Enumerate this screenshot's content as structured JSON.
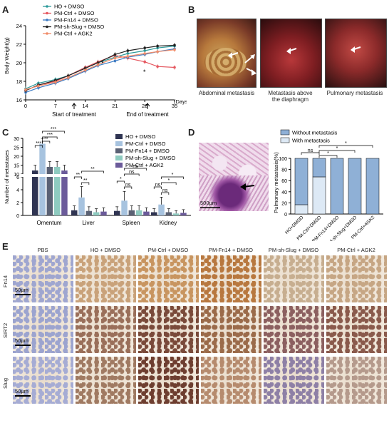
{
  "panels": {
    "a": "A",
    "b": "B",
    "c": "C",
    "d": "D",
    "e": "E"
  },
  "colors": {
    "ho": "#2e9b9b",
    "pmctrl": "#e5575f",
    "pmfn14": "#3b7bc4",
    "pmshslug": "#222222",
    "agk2": "#f08c6a",
    "c_ho": "#2f3452",
    "c_pmctrl": "#a7c3df",
    "c_fn14": "#5a6174",
    "c_slug": "#8ecbc0",
    "c_agk2": "#6b5b9a"
  },
  "panel_a": {
    "ylabel": "Body Weight(g)",
    "xlabel_unit": "(Days)",
    "start_label": "Start of treatment",
    "end_label": "End of treatment",
    "star1": "*",
    "star2": "*"
  },
  "panel_b": {
    "captions": [
      "Abdominal metastasis",
      "Metastasis above\nthe diaphragm",
      "Pulmonary metastasis"
    ]
  },
  "panel_c": {
    "ylabel": "Number of metastases",
    "groups": [
      "Omentum",
      "Liver",
      "Spleen",
      "Kidney"
    ],
    "sig": {
      "omentum": [
        "***",
        "***",
        "***",
        "**"
      ],
      "liver": [
        "**",
        "**",
        "**"
      ],
      "spleen": [
        "*",
        "ns",
        "ns",
        "ns"
      ],
      "kidney": [
        "ns",
        "ns",
        "*",
        "*"
      ]
    }
  },
  "panel_d": {
    "ylabel": "Pulmonary metastasis(%)",
    "scale": "500μm",
    "legend": [
      "Without metastasis",
      "With metastasis"
    ],
    "sig": [
      "ns",
      "*",
      "*",
      "*"
    ]
  },
  "panel_e": {
    "headers": [
      "PBS",
      "HO + DMSO",
      "PM-Ctrl + DMSO",
      "PM-Fn14 + DMSO",
      "PM-sh-Slug + DMSO",
      "PM-Ctrl + AGK2"
    ],
    "rows": [
      "Fn14",
      "SIRT2",
      "Slug"
    ],
    "scale": "50μm"
  },
  "chart_data": [
    {
      "type": "line",
      "x": [
        0,
        3,
        7,
        10,
        14,
        17,
        21,
        24,
        28,
        31,
        35
      ],
      "xticks": [
        0,
        7,
        14,
        21,
        28,
        35
      ],
      "ylim": [
        16,
        24
      ],
      "yticks": [
        16,
        18,
        20,
        22,
        24
      ],
      "xlabel": "(Days)",
      "ylabel": "Body Weight(g)",
      "legend": "top-left",
      "series": [
        {
          "name": "HO + DMSO",
          "values": [
            17.2,
            17.8,
            18.2,
            18.6,
            19.5,
            20.0,
            20.6,
            21.0,
            21.3,
            21.6,
            21.8
          ]
        },
        {
          "name": "PM-Ctrl + DMSO",
          "values": [
            17.0,
            17.6,
            18.0,
            18.6,
            19.5,
            20.1,
            20.8,
            20.5,
            20.1,
            19.6,
            19.5
          ]
        },
        {
          "name": "PM-Fn14 + DMSO",
          "values": [
            16.8,
            17.3,
            17.8,
            18.3,
            19.1,
            19.7,
            20.2,
            20.6,
            20.9,
            21.2,
            21.5
          ]
        },
        {
          "name": "PM-sh-Slug + DMSO",
          "values": [
            17.0,
            17.6,
            18.1,
            18.6,
            19.4,
            20.0,
            20.9,
            21.3,
            21.6,
            21.8,
            21.9
          ]
        },
        {
          "name": "PM-Ctrl + AGK2",
          "values": [
            17.1,
            17.5,
            17.9,
            18.4,
            19.2,
            19.8,
            20.5,
            20.7,
            21.0,
            21.2,
            21.4
          ]
        }
      ]
    },
    {
      "type": "bar",
      "categories": [
        "Omentum",
        "Liver",
        "Spleen",
        "Kidney"
      ],
      "ylabel": "Number of metastases",
      "legend": "top-right",
      "yticks": [
        0,
        2,
        4,
        6,
        10,
        15,
        20,
        25,
        30
      ],
      "series": [
        {
          "name": "HO + DMSO",
          "values": [
            12,
            0.8,
            0.7,
            0.5
          ]
        },
        {
          "name": "PM-Ctrl + DMSO",
          "values": [
            27,
            2.8,
            2.3,
            1.7
          ]
        },
        {
          "name": "PM-Fn14 + DMSO",
          "values": [
            14,
            0.7,
            0.8,
            0.5
          ]
        },
        {
          "name": "PM-sh-Slug + DMSO",
          "values": [
            14,
            0.5,
            0.8,
            0.3
          ]
        },
        {
          "name": "PM-Ctrl + AGK2",
          "values": [
            12,
            0.6,
            0.6,
            0.4
          ]
        }
      ]
    },
    {
      "type": "bar",
      "stacked": true,
      "categories": [
        "HO+DMSO",
        "PM-Ctrl+DMSO",
        "PM-Fn14+DMSO",
        "PM-sh-Slug+DMSO",
        "PM-Ctrl+AGK2"
      ],
      "ylabel": "Pulmonary metastasis(%)",
      "ylim": [
        0,
        100
      ],
      "yticks": [
        0,
        20,
        40,
        60,
        80,
        100
      ],
      "series": [
        {
          "name": "With metastasis",
          "values": [
            16.7,
            66.7,
            0,
            0,
            0
          ]
        },
        {
          "name": "Without metastasis",
          "values": [
            83.3,
            33.3,
            100,
            100,
            100
          ]
        }
      ]
    }
  ]
}
